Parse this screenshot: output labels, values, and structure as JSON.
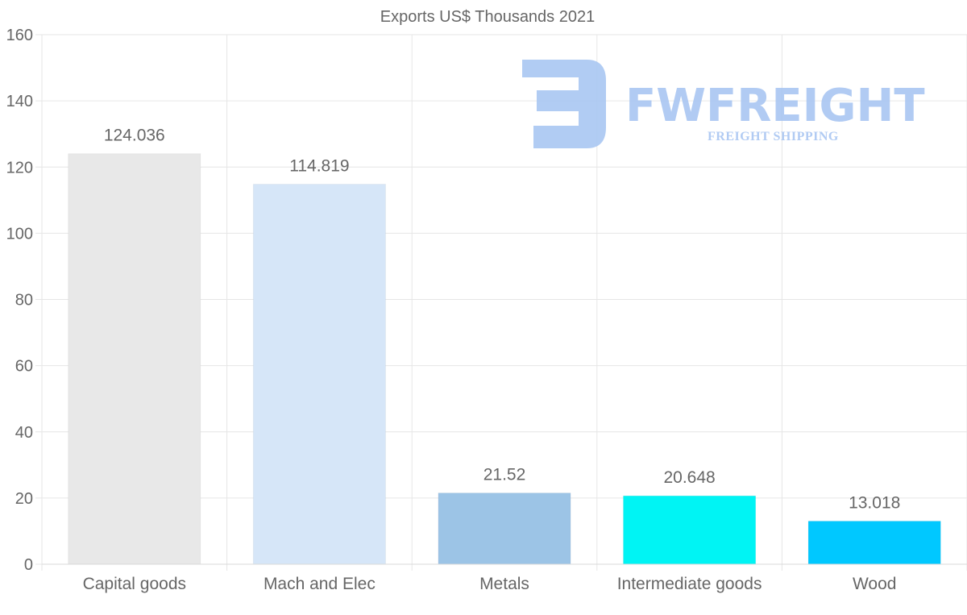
{
  "chart_data": {
    "type": "bar",
    "title": "Exports US$ Thousands 2021",
    "categories": [
      "Capital goods",
      "Mach and Elec",
      "Metals",
      "Intermediate goods",
      "Wood"
    ],
    "values": [
      124.036,
      114.819,
      21.52,
      20.648,
      13.018
    ],
    "value_labels": [
      "124.036",
      "114.819",
      "21.52",
      "20.648",
      "13.018"
    ],
    "colors": [
      "#e8e8e8",
      "#d6e6f8",
      "#9cc4e6",
      "#00f4f4",
      "#00c8ff"
    ],
    "ylim": [
      0,
      160
    ],
    "yticks": [
      0,
      20,
      40,
      60,
      80,
      100,
      120,
      140,
      160
    ],
    "xlabel": "",
    "ylabel": "",
    "grid": true,
    "legend": "none"
  },
  "watermark": {
    "brand": "FWFREIGHT",
    "tagline": "FREIGHT SHIPPING",
    "color": "#a9c6f2"
  }
}
